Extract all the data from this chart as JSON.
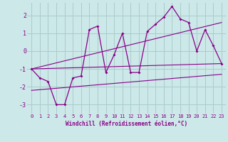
{
  "background_color": "#cce8e8",
  "grid_color": "#aacccc",
  "line_color": "#880088",
  "xlabel": "Windchill (Refroidissement éolien,°C)",
  "xlim": [
    -0.5,
    23.5
  ],
  "ylim": [
    -3.5,
    2.7
  ],
  "yticks": [
    -3,
    -2,
    -1,
    0,
    1,
    2
  ],
  "xticks": [
    0,
    1,
    2,
    3,
    4,
    5,
    6,
    7,
    8,
    9,
    10,
    11,
    12,
    13,
    14,
    15,
    16,
    17,
    18,
    19,
    20,
    21,
    22,
    23
  ],
  "series1_x": [
    0,
    1,
    2,
    3,
    4,
    5,
    6,
    7,
    8,
    9,
    10,
    11,
    12,
    13,
    14,
    15,
    16,
    17,
    18,
    19,
    20,
    21,
    22,
    23
  ],
  "series1_y": [
    -1.0,
    -1.5,
    -1.7,
    -3.0,
    -3.0,
    -1.5,
    -1.4,
    1.2,
    1.4,
    -1.2,
    -0.2,
    1.0,
    -1.2,
    -1.2,
    1.1,
    1.5,
    1.9,
    2.5,
    1.8,
    1.6,
    0.0,
    1.2,
    0.3,
    -0.7
  ],
  "series2_x": [
    0,
    23
  ],
  "series2_y": [
    -1.0,
    -0.7
  ],
  "series3_x": [
    0,
    23
  ],
  "series3_y": [
    -1.0,
    1.6
  ],
  "series4_x": [
    0,
    23
  ],
  "series4_y": [
    -2.2,
    -1.3
  ]
}
